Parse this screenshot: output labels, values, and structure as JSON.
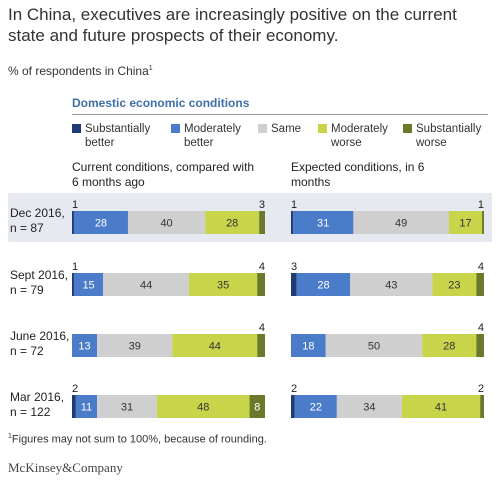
{
  "title": "In China, executives are increasingly positive on the current state and future prospects of their economy.",
  "subtitle": {
    "text": "% of respondents in China",
    "sup": "1"
  },
  "legend_title": "Domestic economic conditions",
  "legend": [
    {
      "label": "Substantially better",
      "color": "#1f3b73"
    },
    {
      "label": "Moderately better",
      "color": "#4a7cc9"
    },
    {
      "label": "Same",
      "color": "#cfcfcf"
    },
    {
      "label": "Moderately worse",
      "color": "#c8d44a"
    },
    {
      "label": "Substantially worse",
      "color": "#6b7a2a"
    }
  ],
  "panels": [
    {
      "heading": "Current conditions, compared with 6 months ago"
    },
    {
      "heading": "Expected conditions, in 6 months"
    }
  ],
  "rows": [
    {
      "label": "Dec 2016, n = 87",
      "highlighted": true
    },
    {
      "label": "Sept 2016, n = 79",
      "highlighted": false
    },
    {
      "label": "June 2016, n = 72",
      "highlighted": false
    },
    {
      "label": "Mar 2016, n = 122",
      "highlighted": false
    }
  ],
  "chart_data": {
    "type": "bar",
    "stacked": true,
    "orientation": "horizontal",
    "categories": [
      "Dec 2016, n = 87",
      "Sept 2016, n = 79",
      "June 2016, n = 72",
      "Mar 2016, n = 122"
    ],
    "series_names": [
      "Substantially better",
      "Moderately better",
      "Same",
      "Moderately worse",
      "Substantially worse"
    ],
    "panels": [
      {
        "title": "Current conditions, compared with 6 months ago",
        "values": [
          [
            1,
            28,
            40,
            28,
            3
          ],
          [
            1,
            15,
            44,
            35,
            4
          ],
          [
            0,
            13,
            39,
            44,
            4
          ],
          [
            2,
            11,
            31,
            48,
            8
          ]
        ]
      },
      {
        "title": "Expected conditions, in 6 months",
        "values": [
          [
            1,
            31,
            49,
            17,
            1
          ],
          [
            3,
            28,
            43,
            23,
            4
          ],
          [
            0,
            18,
            50,
            28,
            4
          ],
          [
            2,
            22,
            34,
            41,
            2
          ]
        ]
      }
    ],
    "colors": [
      "#1f3b73",
      "#4a7cc9",
      "#cfcfcf",
      "#c8d44a",
      "#6b7a2a"
    ],
    "label_colors": [
      "#ffffff",
      "#ffffff",
      "#333333",
      "#333333",
      "#ffffff"
    ]
  },
  "footnote": {
    "sup": "1",
    "text": "Figures may not sum to 100%, because of rounding."
  },
  "logo": "McKinsey&Company"
}
